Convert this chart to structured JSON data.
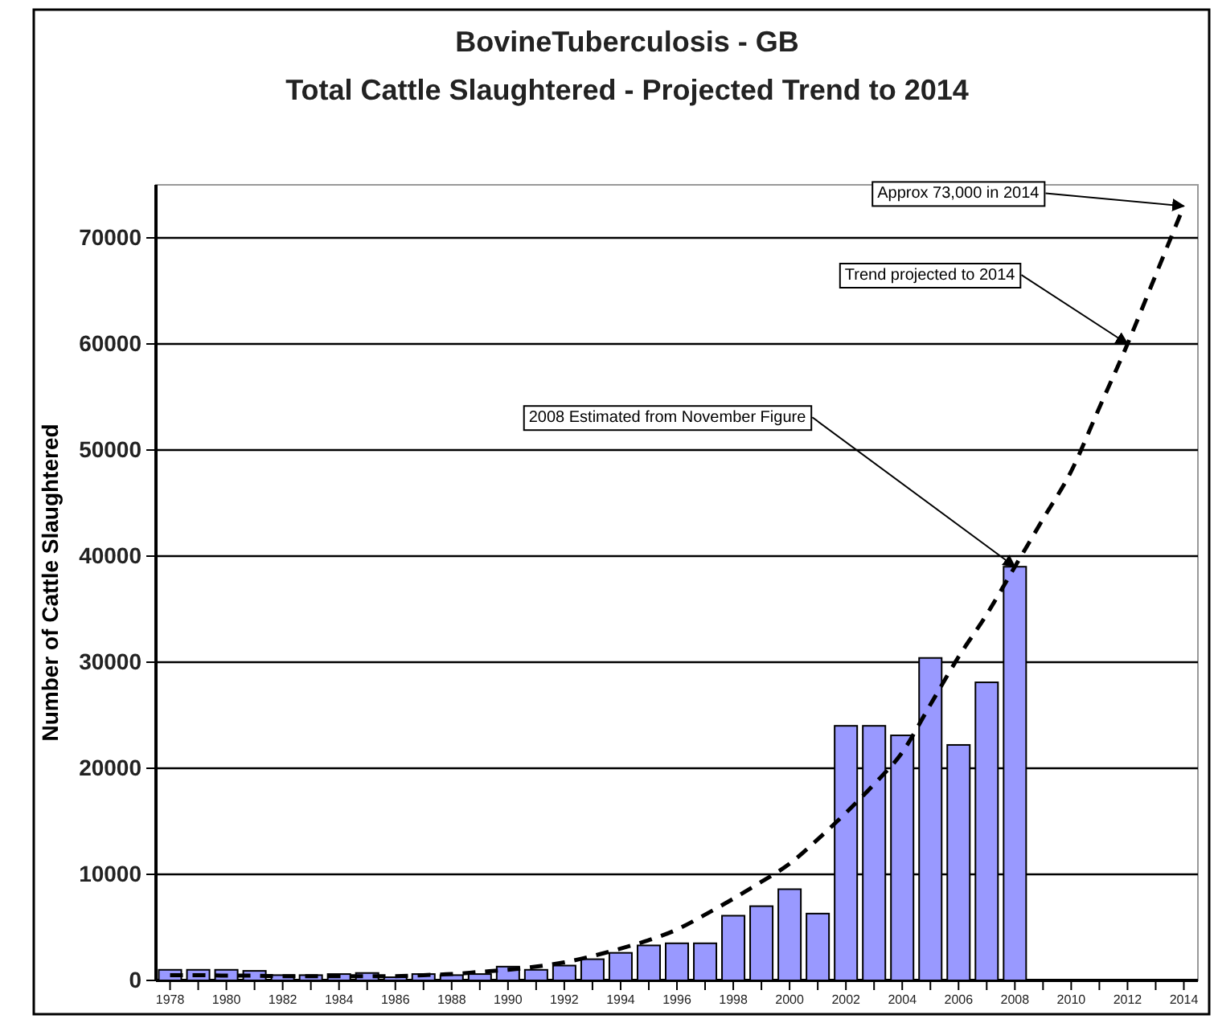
{
  "chart_data": {
    "type": "bar",
    "title": "BovineTuberculosis - GB",
    "subtitle": "Total Cattle Slaughtered - Projected Trend to 2014",
    "ylabel": "Number of Cattle Slaughtered",
    "categories": [
      "1978",
      null,
      "1980",
      null,
      "1982",
      null,
      "1984",
      null,
      "1986",
      null,
      "1988",
      null,
      "1990",
      null,
      "1992",
      null,
      "1994",
      null,
      "1996",
      null,
      "1998",
      null,
      "2000",
      null,
      "2002",
      null,
      "2004",
      null,
      "2006",
      null,
      "2008",
      null,
      "2010",
      null,
      "2012",
      null,
      "2014"
    ],
    "series": [
      {
        "color": "#9999ff",
        "values": [
          1000,
          1000,
          1000,
          900,
          500,
          500,
          600,
          700,
          300,
          600,
          500,
          600,
          1300,
          1000,
          1400,
          2000,
          2600,
          3300,
          3500,
          3500,
          6100,
          7000,
          8600,
          6300,
          24000,
          24000,
          23100,
          30400,
          22200,
          28100,
          39000,
          null,
          null,
          null,
          null,
          null,
          null
        ]
      },
      {
        "type": "line",
        "color": "#000000",
        "line_style": "dashed",
        "values": [
          500,
          500,
          450,
          450,
          400,
          400,
          400,
          400,
          400,
          500,
          600,
          800,
          1000,
          1300,
          1700,
          2300,
          3000,
          3800,
          4800,
          6200,
          7700,
          9300,
          11000,
          13300,
          15800,
          18500,
          21500,
          26000,
          30500,
          34500,
          39000,
          43500,
          48000,
          54000,
          60000,
          66500,
          73000
        ]
      }
    ],
    "ylim": [
      0,
      75000
    ],
    "yticks": [
      0,
      10000,
      20000,
      30000,
      40000,
      50000,
      60000,
      70000
    ],
    "grid": "y",
    "annotations": [
      {
        "text": "Approx 73,000 in 2014",
        "x": "2014",
        "y": 73000
      },
      {
        "text": "Trend projected to 2014",
        "x": "2012",
        "y": 60000
      },
      {
        "text": "2008 Estimated from November Figure",
        "x": "2008",
        "y": 39000
      }
    ]
  }
}
